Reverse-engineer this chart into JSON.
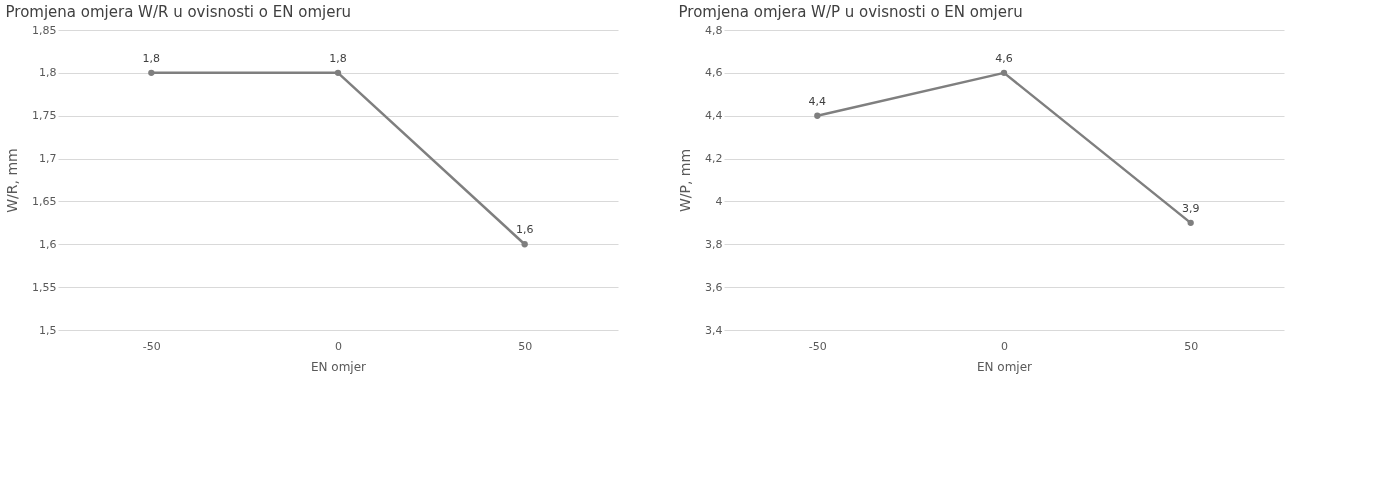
{
  "chart_data": [
    {
      "type": "line",
      "title": "Promjena omjera W/R u ovisnosti o EN omjeru",
      "xlabel": "EN omjer",
      "ylabel": "W/R, mm",
      "categories": [
        "-50",
        "0",
        "50"
      ],
      "series": [
        {
          "color": "#7f7f7f",
          "values": [
            1.8,
            1.8,
            1.6
          ],
          "value_labels": [
            "1,8",
            "1,8",
            "1,6"
          ]
        }
      ],
      "ylim": [
        1.5,
        1.85
      ],
      "yticks": [
        {
          "value": 1.5,
          "label": "1,5"
        },
        {
          "value": 1.55,
          "label": "1,55"
        },
        {
          "value": 1.6,
          "label": "1,6"
        },
        {
          "value": 1.65,
          "label": "1,65"
        },
        {
          "value": 1.7,
          "label": "1,7"
        },
        {
          "value": 1.75,
          "label": "1,75"
        },
        {
          "value": 1.8,
          "label": "1,8"
        },
        {
          "value": 1.85,
          "label": "1,85"
        }
      ],
      "grid": "y",
      "marker": "circle",
      "line_style": "solid"
    },
    {
      "type": "line",
      "title": "Promjena omjera W/P u ovisnosti o EN omjeru",
      "xlabel": "EN omjer",
      "ylabel": "W/P, mm",
      "categories": [
        "-50",
        "0",
        "50"
      ],
      "series": [
        {
          "color": "#7f7f7f",
          "values": [
            4.4,
            4.6,
            3.9
          ],
          "value_labels": [
            "4,4",
            "4,6",
            "3,9"
          ]
        }
      ],
      "ylim": [
        3.4,
        4.8
      ],
      "yticks": [
        {
          "value": 3.4,
          "label": "3,4"
        },
        {
          "value": 3.6,
          "label": "3,6"
        },
        {
          "value": 3.8,
          "label": "3,8"
        },
        {
          "value": 4,
          "label": "4"
        },
        {
          "value": 4.2,
          "label": "4,2"
        },
        {
          "value": 4.4,
          "label": "4,4"
        },
        {
          "value": 4.6,
          "label": "4,6"
        },
        {
          "value": 4.8,
          "label": "4,8"
        }
      ],
      "grid": "y",
      "marker": "circle",
      "line_style": "solid"
    }
  ]
}
